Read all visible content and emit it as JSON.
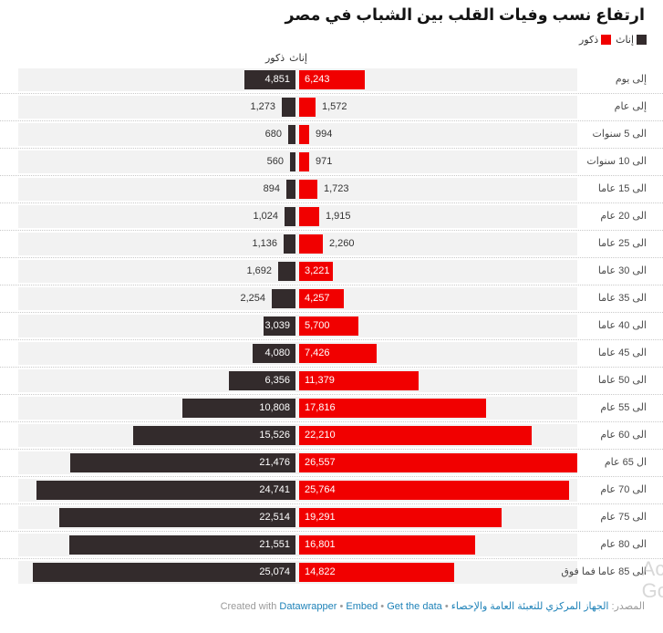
{
  "title": "ارتفاع نسب وفيات القلب بين الشباب في مصر",
  "legend": {
    "female_label": "إناث",
    "male_label": "ذكور",
    "female_color": "#332b2c",
    "male_color": "#f10000"
  },
  "column_headers": {
    "female": "إناث",
    "male": "ذكور"
  },
  "chart_data": {
    "type": "bar",
    "orientation": "diverging-horizontal-pyramid",
    "title": "ارتفاع نسب وفيات القلب بين الشباب في مصر",
    "categories": [
      "إلى يوم",
      "إلى عام",
      "الى 5 سنوات",
      "الى 10 سنوات",
      "الى 15 عاما",
      "الى 20 عام",
      "الى 25 عاما",
      "الى 30 عاما",
      "الى 35 عاما",
      "الى 40 عاما",
      "الى 45 عاما",
      "الى 50 عاما",
      "الى 55 عام",
      "الى 60 عام",
      "ال 65 عام",
      "الى 70 عام",
      "الى 75 عام",
      "الى 80 عام",
      "الى 85 عاما فما فوق"
    ],
    "series": [
      {
        "name": "إناث",
        "color": "#332b2c",
        "side": "left",
        "values": [
          4851,
          1273,
          680,
          560,
          894,
          1024,
          1136,
          1692,
          2254,
          3039,
          4080,
          6356,
          10808,
          15526,
          21476,
          24741,
          22514,
          21551,
          25074
        ]
      },
      {
        "name": "ذكور",
        "color": "#f10000",
        "side": "right",
        "values": [
          6243,
          1572,
          994,
          971,
          1723,
          1915,
          2260,
          3221,
          4257,
          5700,
          7426,
          11379,
          17816,
          22210,
          26557,
          25764,
          19291,
          16801,
          14822
        ]
      }
    ],
    "xmax": 26557,
    "grid": "off",
    "row_background": "#f2f2f2",
    "legend_position": "top-right"
  },
  "footer": {
    "source_prefix": "المصدر:",
    "source_link": "الجهاز المركزي للتعبئة العامة والإحصاء",
    "separator": "•",
    "created_with": "Created with",
    "datawrapper_link": "Datawrapper",
    "embed_link": "Embed",
    "get_data_link": "Get the data"
  },
  "watermark": {
    "line1": "Ac",
    "line2": "Go"
  }
}
